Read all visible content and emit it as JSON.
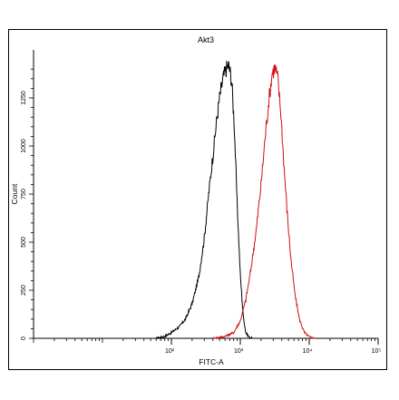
{
  "chart_data": {
    "type": "area",
    "title": "Akt3",
    "xlabel": "FITC-A",
    "ylabel": "Count",
    "x_scale": "log",
    "xlim": [
      1,
      100000
    ],
    "ylim": [
      0,
      1500
    ],
    "x_ticks": [
      {
        "value": 100,
        "label": "10²"
      },
      {
        "value": 1000,
        "label": "10³"
      },
      {
        "value": 10000,
        "label": "10⁴"
      },
      {
        "value": 100000,
        "label": "10⁵"
      }
    ],
    "y_ticks": [
      {
        "value": 0,
        "label": "0"
      },
      {
        "value": 250,
        "label": "250"
      },
      {
        "value": 500,
        "label": "500"
      },
      {
        "value": 750,
        "label": "750"
      },
      {
        "value": 1000,
        "label": "1000"
      },
      {
        "value": 1250,
        "label": "1250"
      }
    ],
    "grid": false,
    "series": [
      {
        "color": "#000000",
        "x": [
          60,
          80,
          100,
          130,
          160,
          200,
          250,
          300,
          350,
          400,
          450,
          500,
          560,
          620,
          680,
          750,
          820,
          900,
          1000,
          1100,
          1200,
          1350,
          1500
        ],
        "y": [
          0,
          10,
          30,
          60,
          100,
          180,
          320,
          520,
          760,
          950,
          1120,
          1250,
          1350,
          1400,
          1420,
          1340,
          1100,
          700,
          330,
          120,
          30,
          5,
          0
        ]
      },
      {
        "color": "#d01010",
        "x": [
          400,
          600,
          800,
          1000,
          1200,
          1400,
          1700,
          2000,
          2300,
          2600,
          2900,
          3200,
          3500,
          3900,
          4300,
          4800,
          5400,
          6200,
          7200,
          8500,
          10000,
          12000
        ],
        "y": [
          0,
          10,
          30,
          90,
          200,
          340,
          560,
          800,
          1050,
          1240,
          1380,
          1410,
          1350,
          1160,
          900,
          650,
          420,
          230,
          100,
          30,
          8,
          0
        ]
      }
    ]
  }
}
